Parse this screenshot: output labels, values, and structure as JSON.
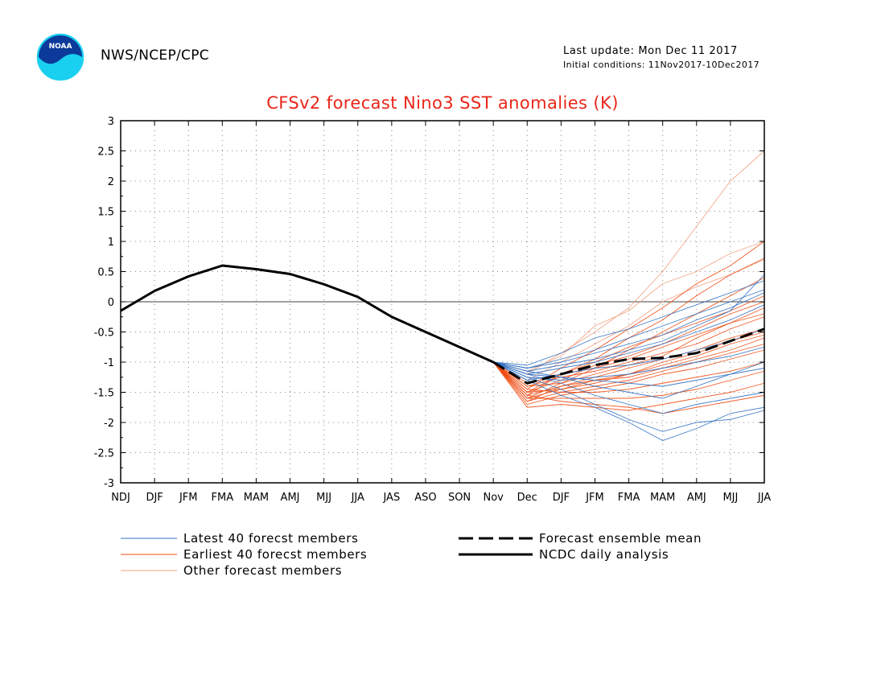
{
  "header": {
    "org": "NWS/NCEP/CPC",
    "last_update": "Last update: Mon Dec 11 2017",
    "initial_conditions": "Initial conditions: 11Nov2017-10Dec2017",
    "logo_text": "NOAA"
  },
  "colors": {
    "title": "#e8261a",
    "latest": "#2f6fc2",
    "earliest": "#ee4b12",
    "other": "#f2a080",
    "mean": "#000000",
    "analysis": "#000000"
  },
  "chart_data": {
    "type": "line",
    "title": "CFSv2 forecast Nino3 SST anomalies (K)",
    "xlabel": "",
    "ylabel": "",
    "categories": [
      "NDJ",
      "DJF",
      "JFM",
      "FMA",
      "MAM",
      "AMJ",
      "MJJ",
      "JJA",
      "JAS",
      "ASO",
      "SON",
      "Nov",
      "Dec",
      "DJF",
      "JFM",
      "FMA",
      "MAM",
      "AMJ",
      "MJJ",
      "JJA"
    ],
    "ylim": [
      -3,
      3
    ],
    "yticks": [
      "3",
      "2.5",
      "2",
      "1.5",
      "1",
      "0.5",
      "0",
      "-0.5",
      "-1",
      "-1.5",
      "-2",
      "-2.5",
      "-3"
    ],
    "grid": true,
    "legend": {
      "placement": "below",
      "entries": [
        "Latest 40 forecst members",
        "Earliest 40 forecst members",
        "Other forecast members",
        "Forecast ensemble mean",
        "NCDC daily analysis"
      ]
    },
    "series": [
      {
        "name": "NCDC daily analysis",
        "style": "solid-thick",
        "values": [
          -0.15,
          0.18,
          0.42,
          0.6,
          0.54,
          0.46,
          0.29,
          0.08,
          -0.25,
          -0.5,
          -0.75,
          -1.0,
          null,
          null,
          null,
          null,
          null,
          null,
          null,
          null
        ]
      },
      {
        "name": "Forecast ensemble mean",
        "style": "dashed-thick",
        "values": [
          null,
          null,
          null,
          null,
          null,
          null,
          null,
          null,
          null,
          null,
          null,
          -1.0,
          -1.35,
          -1.2,
          -1.05,
          -0.95,
          -0.93,
          -0.85,
          -0.65,
          -0.45
        ]
      },
      {
        "name": "Other forecast members",
        "style": "thin",
        "members": [
          [
            -1.0,
            -1.2,
            -0.85,
            -0.5,
            -0.1,
            0.5,
            1.25,
            2.0,
            2.5
          ],
          [
            -1.0,
            -1.15,
            -0.9,
            -0.4,
            -0.15,
            0.3,
            0.5,
            0.8,
            1.0
          ],
          [
            -1.0,
            -1.3,
            -1.0,
            -0.7,
            -0.4,
            0.0,
            0.25,
            0.45,
            0.7
          ]
        ]
      },
      {
        "name": "Earliest 40 forecst members",
        "style": "thin",
        "members": [
          [
            -1.0,
            -1.45,
            -1.1,
            -0.8,
            -0.45,
            -0.1,
            0.3,
            0.6,
            1.0
          ],
          [
            -1.0,
            -1.55,
            -1.2,
            -0.95,
            -0.6,
            -0.3,
            0.1,
            0.45,
            0.72
          ],
          [
            -1.0,
            -1.6,
            -1.35,
            -1.1,
            -0.8,
            -0.5,
            -0.2,
            0.1,
            0.4
          ],
          [
            -1.0,
            -1.5,
            -1.3,
            -1.05,
            -0.9,
            -0.7,
            -0.45,
            -0.2,
            0.0
          ],
          [
            -1.0,
            -1.4,
            -1.25,
            -1.15,
            -1.0,
            -0.85,
            -0.7,
            -0.45,
            -0.25
          ],
          [
            -1.0,
            -1.65,
            -1.4,
            -1.25,
            -1.1,
            -0.95,
            -0.8,
            -0.6,
            -0.45
          ],
          [
            -1.0,
            -1.5,
            -1.45,
            -1.3,
            -1.25,
            -1.1,
            -0.95,
            -0.8,
            -0.6
          ],
          [
            -1.0,
            -1.7,
            -1.55,
            -1.45,
            -1.35,
            -1.2,
            -1.1,
            -0.95,
            -0.8
          ],
          [
            -1.0,
            -1.45,
            -1.5,
            -1.5,
            -1.45,
            -1.35,
            -1.25,
            -1.15,
            -1.0
          ],
          [
            -1.0,
            -1.6,
            -1.6,
            -1.6,
            -1.6,
            -1.55,
            -1.45,
            -1.3,
            -1.15
          ],
          [
            -1.0,
            -1.75,
            -1.7,
            -1.75,
            -1.8,
            -1.7,
            -1.6,
            -1.5,
            -1.35
          ],
          [
            -1.0,
            -1.55,
            -1.65,
            -1.7,
            -1.75,
            -1.85,
            -1.75,
            -1.65,
            -1.55
          ],
          [
            -1.0,
            -1.4,
            -1.35,
            -1.2,
            -1.05,
            -0.9,
            -0.6,
            -0.35,
            -0.1
          ],
          [
            -1.0,
            -1.5,
            -1.2,
            -1.0,
            -0.75,
            -0.55,
            -0.35,
            -0.15,
            0.1
          ],
          [
            -1.0,
            -1.6,
            -1.45,
            -1.35,
            -1.2,
            -1.0,
            -0.85,
            -0.65,
            -0.5
          ],
          [
            -1.0,
            -1.35,
            -1.2,
            -1.1,
            -0.95,
            -0.75,
            -0.55,
            -0.35,
            -0.2
          ],
          [
            -1.0,
            -1.65,
            -1.5,
            -1.4,
            -1.3,
            -1.15,
            -1.0,
            -0.85,
            -0.7
          ],
          [
            -1.0,
            -1.55,
            -1.4,
            -1.3,
            -1.2,
            -1.05,
            -0.9,
            -0.7,
            -0.55
          ]
        ]
      },
      {
        "name": "Latest 40 forecst members",
        "style": "thin",
        "members": [
          [
            -1.0,
            -1.3,
            -1.55,
            -1.75,
            -2.0,
            -2.3,
            -2.1,
            -1.85,
            -1.75
          ],
          [
            -1.0,
            -1.25,
            -1.45,
            -1.7,
            -1.95,
            -2.15,
            -2.0,
            -1.95,
            -1.8
          ],
          [
            -1.0,
            -1.2,
            -1.35,
            -1.55,
            -1.7,
            -1.85,
            -1.7,
            -1.6,
            -1.5
          ],
          [
            -1.0,
            -1.15,
            -1.25,
            -1.4,
            -1.5,
            -1.6,
            -1.4,
            -1.2,
            -1.0
          ],
          [
            -1.0,
            -1.1,
            -1.0,
            -0.85,
            -0.7,
            -0.55,
            -0.3,
            -0.1,
            0.15
          ],
          [
            -1.0,
            -1.05,
            -0.85,
            -0.6,
            -0.45,
            -0.25,
            -0.05,
            0.15,
            0.35
          ],
          [
            -1.0,
            -1.2,
            -1.1,
            -1.0,
            -0.85,
            -0.7,
            -0.5,
            -0.3,
            -0.05
          ],
          [
            -1.0,
            -1.3,
            -1.2,
            -1.1,
            -1.05,
            -0.95,
            -0.8,
            -0.65,
            -0.45
          ],
          [
            -1.0,
            -1.15,
            -1.05,
            -0.95,
            -0.8,
            -0.65,
            -0.4,
            -0.15,
            0.45
          ],
          [
            -1.0,
            -1.25,
            -1.3,
            -1.25,
            -1.2,
            -1.1,
            -1.0,
            -0.9,
            -0.75
          ],
          [
            -1.0,
            -1.1,
            -0.95,
            -0.8,
            -0.6,
            -0.4,
            -0.2,
            0.0,
            0.2
          ],
          [
            -1.0,
            -1.2,
            -1.25,
            -1.3,
            -1.35,
            -1.4,
            -1.3,
            -1.2,
            -1.1
          ]
        ]
      }
    ]
  }
}
